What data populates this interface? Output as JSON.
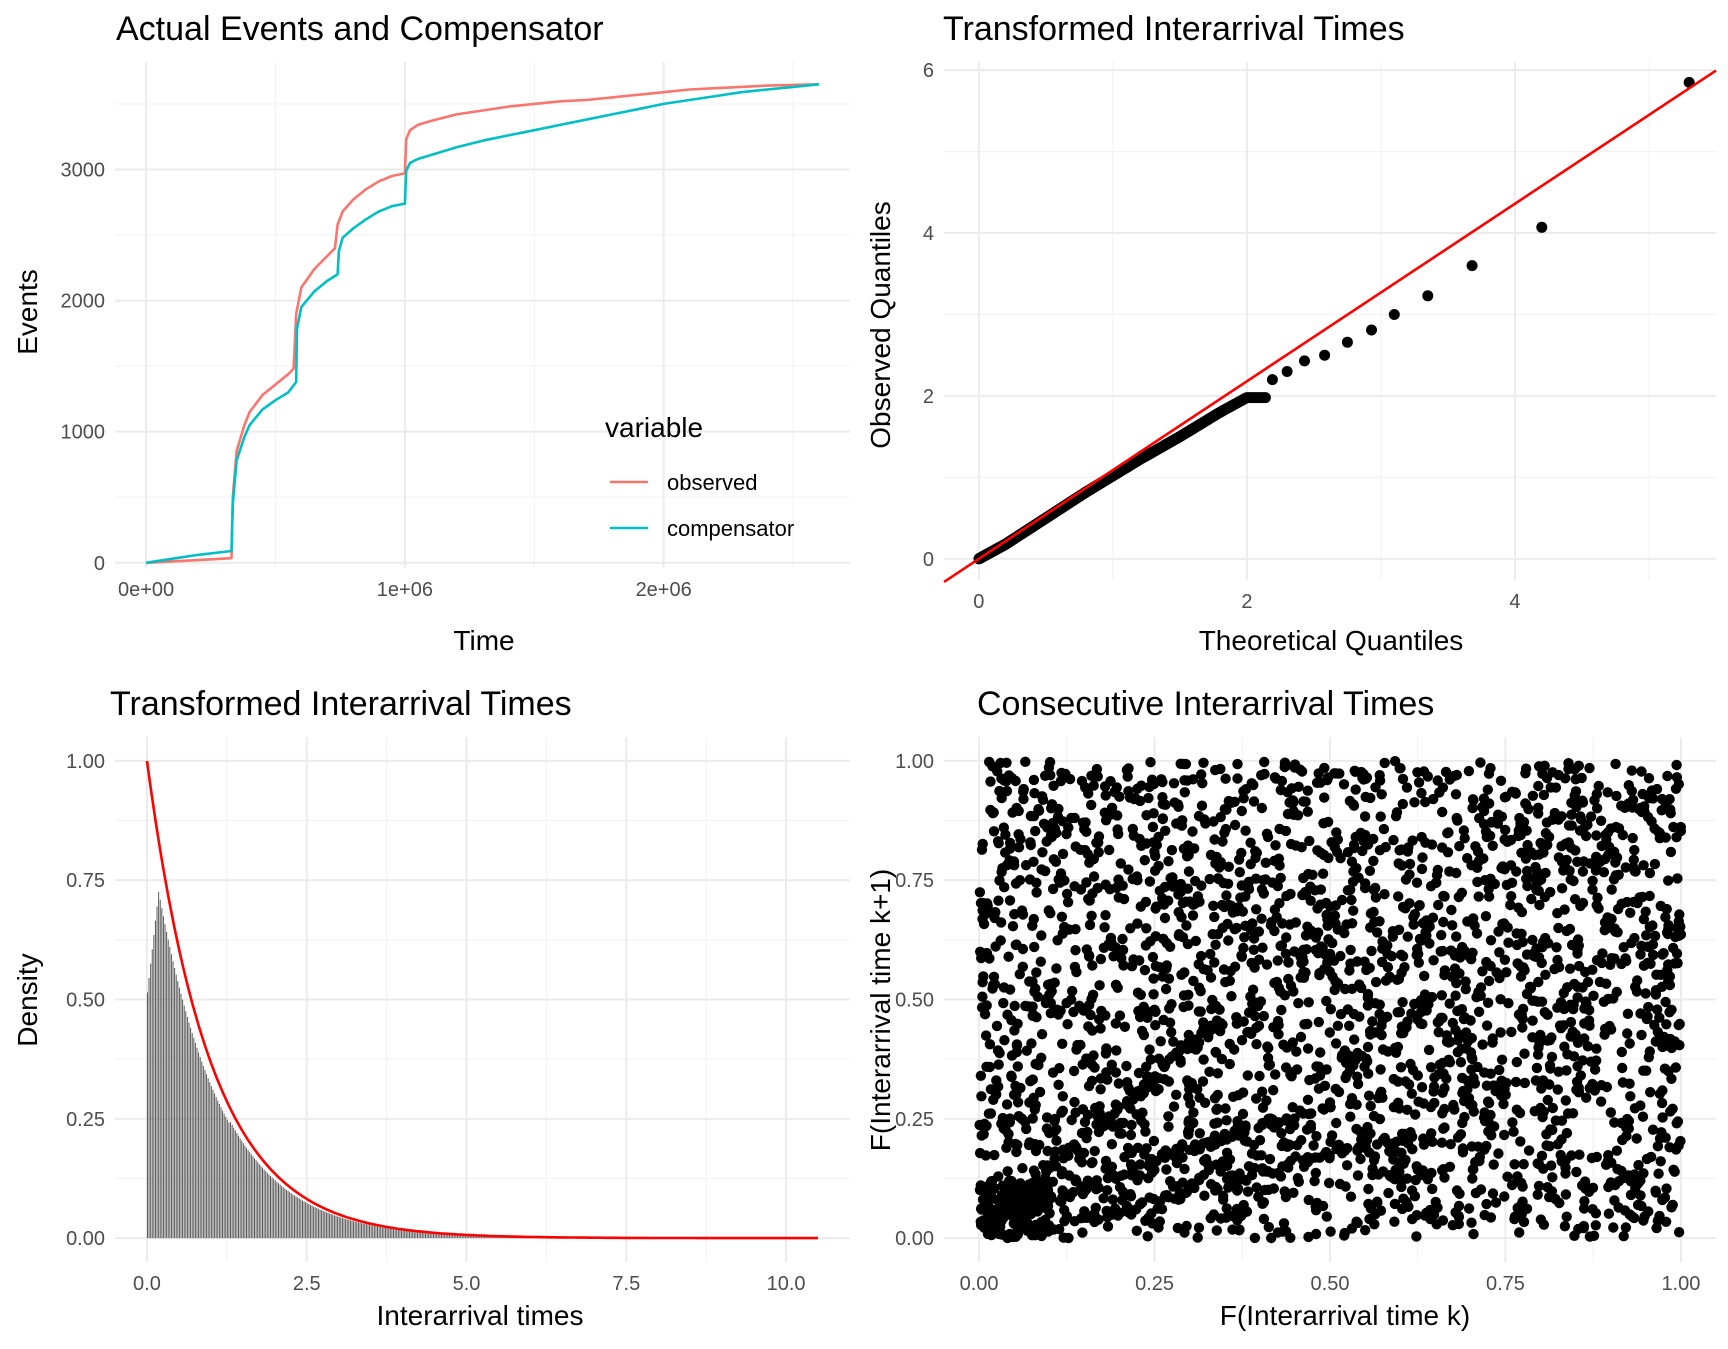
{
  "colors": {
    "observed": "#F8766D",
    "compensator": "#00BFC4",
    "reference_line": "#FF0000",
    "points": "#000000",
    "bars": "#595959"
  },
  "chart_data": [
    {
      "id": "events",
      "type": "line",
      "title": "Actual Events and Compensator",
      "xlabel": "Time",
      "ylabel": "Events",
      "xlim": [
        -120000,
        2720000
      ],
      "ylim": [
        -40,
        3820
      ],
      "xticks": [
        0,
        1000000,
        2000000
      ],
      "xtick_labels": [
        "0e+00",
        "1e+06",
        "2e+06"
      ],
      "yticks": [
        0,
        1000,
        2000,
        3000
      ],
      "ytick_labels": [
        "0",
        "1000",
        "2000",
        "3000"
      ],
      "grid": true,
      "legend": {
        "title": "variable",
        "position": "right",
        "entries": [
          "observed",
          "compensator"
        ]
      },
      "series": [
        {
          "name": "observed",
          "x": [
            0,
            100000,
            200000,
            330000,
            335000,
            350000,
            380000,
            400000,
            450000,
            500000,
            550000,
            570000,
            580000,
            600000,
            650000,
            700000,
            730000,
            740000,
            760000,
            800000,
            850000,
            900000,
            950000,
            1000000,
            1005000,
            1020000,
            1050000,
            1100000,
            1200000,
            1300000,
            1400000,
            1500000,
            1600000,
            1700000,
            1800000,
            1900000,
            2000000,
            2100000,
            2200000,
            2300000,
            2400000,
            2500000,
            2600000
          ],
          "y": [
            0,
            10,
            20,
            35,
            500,
            850,
            1050,
            1150,
            1280,
            1360,
            1440,
            1480,
            1900,
            2100,
            2240,
            2340,
            2400,
            2580,
            2680,
            2770,
            2850,
            2910,
            2950,
            2970,
            3230,
            3300,
            3340,
            3370,
            3420,
            3450,
            3480,
            3500,
            3520,
            3530,
            3550,
            3570,
            3590,
            3610,
            3620,
            3630,
            3640,
            3645,
            3650
          ]
        },
        {
          "name": "compensator",
          "x": [
            0,
            100000,
            200000,
            330000,
            335000,
            350000,
            380000,
            400000,
            450000,
            500000,
            550000,
            580000,
            583000,
            600000,
            650000,
            700000,
            740000,
            745000,
            760000,
            800000,
            850000,
            900000,
            950000,
            1000000,
            1005000,
            1020000,
            1050000,
            1100000,
            1200000,
            1300000,
            1400000,
            1500000,
            1600000,
            1700000,
            1800000,
            1900000,
            2000000,
            2100000,
            2200000,
            2300000,
            2400000,
            2500000,
            2600000
          ],
          "y": [
            0,
            30,
            60,
            90,
            450,
            780,
            960,
            1050,
            1170,
            1240,
            1300,
            1380,
            1780,
            1950,
            2070,
            2150,
            2200,
            2380,
            2480,
            2550,
            2620,
            2680,
            2720,
            2740,
            2990,
            3050,
            3080,
            3110,
            3170,
            3220,
            3260,
            3300,
            3340,
            3380,
            3420,
            3460,
            3500,
            3530,
            3560,
            3590,
            3610,
            3630,
            3650
          ]
        }
      ]
    },
    {
      "id": "qq",
      "type": "scatter",
      "title": "Transformed Interarrival Times",
      "xlabel": "Theoretical Quantiles",
      "ylabel": "Observed Quantiles",
      "xlim": [
        -0.26,
        5.5
      ],
      "ylim": [
        -0.26,
        6.1
      ],
      "xticks": [
        0,
        2,
        4
      ],
      "xtick_labels": [
        "0",
        "2",
        "4"
      ],
      "yticks": [
        0,
        2,
        4,
        6
      ],
      "ytick_labels": [
        "0",
        "2",
        "4",
        "6"
      ],
      "grid": true,
      "reference_line": {
        "intercept": 0,
        "slope": 1.09
      },
      "tail_points": {
        "x": [
          2.19,
          2.3,
          2.43,
          2.58,
          2.75,
          2.93,
          3.1,
          3.35,
          3.68,
          4.2,
          5.3
        ],
        "y": [
          2.2,
          2.3,
          2.43,
          2.5,
          2.66,
          2.81,
          3.0,
          3.23,
          3.6,
          4.07,
          5.85
        ]
      },
      "body_curve": {
        "x": [
          0,
          0.2,
          0.5,
          0.8,
          1.0,
          1.2,
          1.5,
          1.8,
          2.0
        ],
        "y": [
          0,
          0.18,
          0.5,
          0.82,
          1.02,
          1.22,
          1.5,
          1.8,
          1.98
        ]
      },
      "n_points": 3650
    },
    {
      "id": "density",
      "type": "bar",
      "title": "Transformed Interarrival Times",
      "xlabel": "Interarrival times",
      "ylabel": "Density",
      "xlim": [
        -0.5,
        11
      ],
      "ylim": [
        -0.05,
        1.05
      ],
      "xticks": [
        0,
        2.5,
        5,
        7.5,
        10
      ],
      "xtick_labels": [
        "0.0",
        "2.5",
        "5.0",
        "7.5",
        "10.0"
      ],
      "yticks": [
        0,
        0.25,
        0.5,
        0.75,
        1
      ],
      "ytick_labels": [
        "0.00",
        "0.25",
        "0.50",
        "0.75",
        "1.00"
      ],
      "grid": true,
      "curve": {
        "function": "exp(-x)",
        "x_range": [
          0,
          10.5
        ]
      },
      "histogram_peak": {
        "x": 0.2,
        "y": 0.74
      },
      "histogram_range": [
        0,
        10.5
      ]
    },
    {
      "id": "consecutive",
      "type": "scatter",
      "title": "Consecutive Interarrival Times",
      "xlabel": "F(Interarrival time k)",
      "ylabel": "F(Interarrival time k+1)",
      "xlim": [
        -0.05,
        1.05
      ],
      "ylim": [
        -0.05,
        1.05
      ],
      "xticks": [
        0,
        0.25,
        0.5,
        0.75,
        1
      ],
      "xtick_labels": [
        "0.00",
        "0.25",
        "0.50",
        "0.75",
        "1.00"
      ],
      "yticks": [
        0,
        0.25,
        0.5,
        0.75,
        1
      ],
      "ytick_labels": [
        "0.00",
        "0.25",
        "0.50",
        "0.75",
        "1.00"
      ],
      "grid": true,
      "n_points": 3650,
      "diagonal_streaks": [
        {
          "from": [
            0.02,
            0.05
          ],
          "to": [
            0.35,
            0.46
          ]
        },
        {
          "from": [
            0.05,
            0.05
          ],
          "to": [
            0.42,
            0.25
          ]
        },
        {
          "from": [
            0.1,
            0.02
          ],
          "to": [
            0.62,
            0.22
          ]
        }
      ]
    }
  ]
}
